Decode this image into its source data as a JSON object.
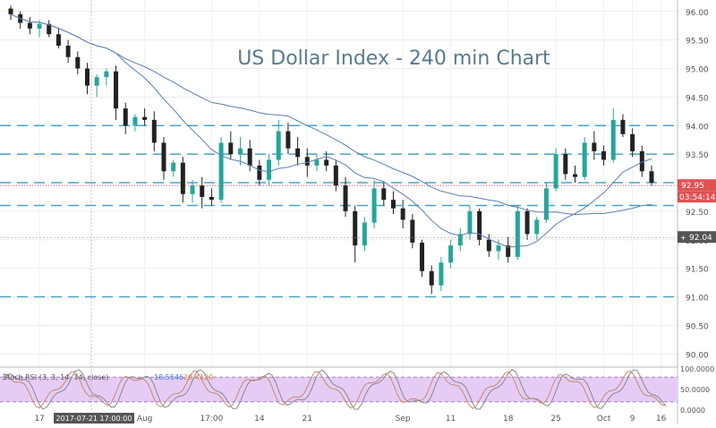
{
  "chart_data": [
    {
      "type": "candlestick",
      "title": "US Dollar Index - 240 min Chart",
      "ylim": [
        89.8,
        96.2
      ],
      "y_ticks": [
        "96.00",
        "95.50",
        "95.00",
        "94.50",
        "94.00",
        "93.50",
        "93.00",
        "92.50",
        "92.00",
        "91.50",
        "91.00",
        "90.50",
        "90.00"
      ],
      "x_ticks": [
        "17",
        "Aug",
        "17:00",
        "14",
        "21",
        "Sep",
        "11",
        "18",
        "25",
        "Oct",
        "9",
        "16"
      ],
      "grid": true,
      "price_label": "92.95",
      "time_label": "03:54:14",
      "crosshair_price": "92.04",
      "crosshair_time": "2017-07-21 17:00:00",
      "horizontal_levels": [
        94.0,
        93.5,
        93.0,
        92.6,
        91.0
      ],
      "candles_ohlc": [
        [
          96.05,
          96.1,
          95.85,
          95.95
        ],
        [
          95.95,
          96.0,
          95.7,
          95.8
        ],
        [
          95.8,
          95.9,
          95.6,
          95.7
        ],
        [
          95.7,
          95.85,
          95.55,
          95.78
        ],
        [
          95.78,
          95.85,
          95.55,
          95.6
        ],
        [
          95.6,
          95.7,
          95.35,
          95.4
        ],
        [
          95.4,
          95.5,
          95.1,
          95.2
        ],
        [
          95.2,
          95.3,
          94.9,
          95.0
        ],
        [
          95.0,
          95.1,
          94.55,
          94.7
        ],
        [
          94.7,
          94.9,
          94.5,
          94.85
        ],
        [
          94.85,
          95.0,
          94.7,
          94.95
        ],
        [
          94.95,
          95.05,
          94.1,
          94.3
        ],
        [
          94.3,
          94.4,
          93.85,
          94.0
        ],
        [
          94.0,
          94.2,
          93.9,
          94.15
        ],
        [
          94.15,
          94.3,
          94.0,
          94.1
        ],
        [
          94.1,
          94.25,
          93.55,
          93.7
        ],
        [
          93.7,
          93.8,
          93.05,
          93.2
        ],
        [
          93.2,
          93.4,
          93.1,
          93.35
        ],
        [
          93.35,
          93.45,
          92.65,
          92.8
        ],
        [
          92.8,
          93.05,
          92.65,
          92.95
        ],
        [
          92.95,
          93.1,
          92.55,
          92.75
        ],
        [
          92.75,
          92.9,
          92.6,
          92.7
        ],
        [
          92.7,
          93.8,
          92.65,
          93.7
        ],
        [
          93.7,
          93.9,
          93.4,
          93.5
        ],
        [
          93.5,
          93.8,
          93.3,
          93.6
        ],
        [
          93.6,
          93.75,
          93.2,
          93.3
        ],
        [
          93.3,
          93.4,
          92.95,
          93.05
        ],
        [
          93.05,
          93.5,
          92.95,
          93.4
        ],
        [
          93.4,
          94.1,
          93.3,
          93.9
        ],
        [
          93.9,
          94.05,
          93.5,
          93.6
        ],
        [
          93.6,
          93.8,
          93.3,
          93.45
        ],
        [
          93.45,
          93.6,
          93.1,
          93.3
        ],
        [
          93.3,
          93.5,
          93.2,
          93.4
        ],
        [
          93.4,
          93.55,
          93.2,
          93.3
        ],
        [
          93.3,
          93.4,
          92.85,
          92.95
        ],
        [
          92.95,
          93.1,
          92.4,
          92.5
        ],
        [
          92.5,
          92.6,
          91.6,
          91.9
        ],
        [
          91.9,
          92.4,
          91.8,
          92.3
        ],
        [
          92.3,
          93.05,
          92.2,
          92.9
        ],
        [
          92.9,
          93.0,
          92.6,
          92.7
        ],
        [
          92.7,
          92.85,
          92.45,
          92.55
        ],
        [
          92.55,
          92.7,
          92.2,
          92.35
        ],
        [
          92.35,
          92.45,
          91.85,
          91.95
        ],
        [
          91.95,
          92.0,
          91.35,
          91.45
        ],
        [
          91.45,
          91.55,
          91.05,
          91.2
        ],
        [
          91.2,
          91.7,
          91.1,
          91.6
        ],
        [
          91.6,
          92.0,
          91.5,
          91.9
        ],
        [
          91.9,
          92.2,
          91.8,
          92.1
        ],
        [
          92.1,
          92.6,
          92.0,
          92.5
        ],
        [
          92.5,
          92.55,
          91.9,
          92.0
        ],
        [
          92.0,
          92.1,
          91.7,
          91.8
        ],
        [
          91.8,
          92.0,
          91.65,
          91.9
        ],
        [
          91.9,
          92.05,
          91.6,
          91.7
        ],
        [
          91.7,
          92.6,
          91.65,
          92.5
        ],
        [
          92.5,
          92.55,
          92.0,
          92.1
        ],
        [
          92.1,
          92.4,
          92.0,
          92.35
        ],
        [
          92.35,
          93.0,
          92.3,
          92.9
        ],
        [
          92.9,
          93.6,
          92.85,
          93.5
        ],
        [
          93.5,
          93.6,
          93.05,
          93.15
        ],
        [
          93.15,
          93.3,
          93.0,
          93.1
        ],
        [
          93.1,
          93.8,
          93.05,
          93.7
        ],
        [
          93.7,
          93.9,
          93.4,
          93.55
        ],
        [
          93.55,
          93.65,
          93.3,
          93.4
        ],
        [
          93.4,
          94.3,
          93.35,
          94.1
        ],
        [
          94.1,
          94.2,
          93.8,
          93.85
        ],
        [
          93.85,
          93.95,
          93.45,
          93.55
        ],
        [
          93.55,
          93.65,
          93.1,
          93.2
        ],
        [
          93.2,
          93.3,
          92.95,
          93.0
        ]
      ],
      "indicator": {
        "name": "Stoch RSI (3, 3, 14, 14, close)",
        "values": [
          "18.5546",
          "20.4120"
        ],
        "y_ticks": [
          "100.0000",
          "50.0000",
          "0.0000"
        ],
        "ylim": [
          0,
          100
        ],
        "band": [
          20,
          80
        ]
      }
    }
  ],
  "colors": {
    "up": "#26a69a",
    "down": "#222222",
    "level_line": "#4aa3c2",
    "ma_line": "#5b7fb0",
    "price_tag": "#e05252",
    "title": "#5a7a8c",
    "stoch_k": "#888888",
    "stoch_d": "#c48a6a",
    "band_fill": "#e6ccf5"
  }
}
